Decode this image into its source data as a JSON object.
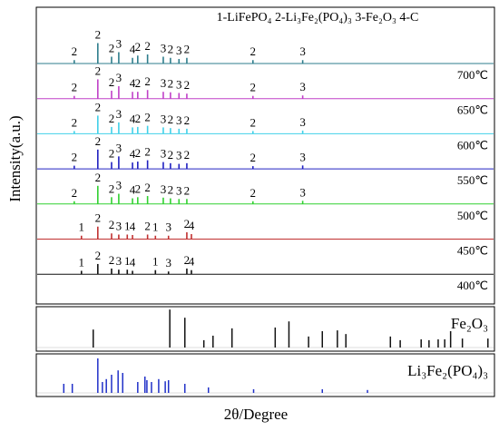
{
  "chart_data": [
    {
      "type": "xrd",
      "title": "1-LiFePO₄  2-Li₃Fe₂(PO₄)₃  3-Fe₂O₃  4-C",
      "y_label": "Intensity(a.u.)",
      "xlim": [
        10,
        80
      ],
      "ylim": [
        0,
        100
      ],
      "series": [
        {
          "name": "700℃",
          "color": "#2e7d8c",
          "x": [
            15.8,
            19.4,
            21.5,
            22.6,
            24.7,
            25.5,
            27.0,
            29.4,
            30.5,
            31.8,
            33.0,
            43.1,
            50.7
          ],
          "values": [
            15,
            90,
            30,
            50,
            25,
            35,
            40,
            30,
            25,
            20,
            25,
            15,
            15
          ],
          "peak_labels": [
            2,
            2,
            2,
            3,
            4,
            2,
            2,
            3,
            2,
            3,
            2,
            2,
            3
          ]
        },
        {
          "name": "650℃",
          "color": "#c040c8",
          "x": [
            15.8,
            19.4,
            21.5,
            22.6,
            24.7,
            25.5,
            27.0,
            29.4,
            30.5,
            31.8,
            33.0,
            43.1,
            50.7
          ],
          "values": [
            12,
            85,
            35,
            55,
            30,
            30,
            38,
            30,
            28,
            25,
            22,
            12,
            14
          ],
          "peak_labels": [
            2,
            2,
            2,
            3,
            4,
            2,
            2,
            3,
            2,
            3,
            2,
            2,
            3
          ]
        },
        {
          "name": "600℃",
          "color": "#40d0e8",
          "x": [
            15.8,
            19.4,
            21.5,
            22.6,
            24.7,
            25.5,
            27.0,
            29.4,
            30.5,
            31.8,
            33.0,
            43.1,
            50.7
          ],
          "values": [
            12,
            80,
            30,
            50,
            28,
            30,
            35,
            28,
            25,
            22,
            22,
            12,
            14
          ],
          "peak_labels": [
            2,
            2,
            2,
            3,
            4,
            2,
            2,
            3,
            2,
            3,
            2,
            2,
            3
          ]
        },
        {
          "name": "550℃",
          "color": "#2020c0",
          "x": [
            15.8,
            19.4,
            21.5,
            22.6,
            24.7,
            25.5,
            27.0,
            29.4,
            30.5,
            31.8,
            33.0,
            43.1,
            50.7
          ],
          "values": [
            14,
            85,
            30,
            55,
            28,
            32,
            38,
            30,
            25,
            22,
            25,
            12,
            15
          ],
          "peak_labels": [
            2,
            2,
            2,
            3,
            4,
            2,
            2,
            3,
            2,
            3,
            2,
            2,
            3
          ]
        },
        {
          "name": "500℃",
          "color": "#30d030",
          "x": [
            15.8,
            19.4,
            21.5,
            22.6,
            24.7,
            25.5,
            27.0,
            29.4,
            30.5,
            31.8,
            33.0,
            43.1,
            50.7
          ],
          "values": [
            12,
            80,
            30,
            45,
            25,
            30,
            35,
            28,
            25,
            22,
            22,
            12,
            14
          ],
          "peak_labels": [
            2,
            2,
            2,
            3,
            4,
            2,
            2,
            3,
            2,
            3,
            2,
            2,
            3
          ]
        },
        {
          "name": "450℃",
          "color": "#c03030",
          "x": [
            16.9,
            19.4,
            21.5,
            22.6,
            23.9,
            24.7,
            27.0,
            28.2,
            30.2,
            33.0,
            33.7
          ],
          "values": [
            15,
            55,
            25,
            20,
            20,
            18,
            20,
            15,
            15,
            30,
            22
          ],
          "peak_labels": [
            1,
            2,
            2,
            3,
            1,
            4,
            2,
            1,
            3,
            2,
            4
          ]
        },
        {
          "name": "400℃",
          "color": "#111111",
          "x": [
            16.9,
            19.4,
            21.5,
            22.6,
            23.9,
            24.7,
            28.2,
            30.2,
            33.0,
            33.7
          ],
          "values": [
            15,
            45,
            25,
            20,
            20,
            15,
            18,
            12,
            25,
            18
          ],
          "peak_labels": [
            1,
            2,
            2,
            3,
            1,
            4,
            1,
            3,
            2,
            4
          ]
        }
      ]
    },
    {
      "type": "stick",
      "label": "Fe₂O₃",
      "color": "#111111",
      "xlim": [
        10,
        80
      ],
      "ylim": [
        0,
        100
      ],
      "x": [
        18.7,
        30.4,
        32.7,
        35.6,
        37.0,
        39.9,
        46.5,
        48.6,
        51.6,
        53.7,
        56.0,
        57.3,
        64.1,
        65.6,
        68.8,
        70.0,
        71.4,
        72.4,
        73.3,
        75.1,
        79.0
      ],
      "values": [
        44,
        93,
        73,
        18,
        29,
        47,
        49,
        64,
        27,
        40,
        42,
        33,
        27,
        18,
        20,
        18,
        20,
        20,
        40,
        22,
        22
      ]
    },
    {
      "type": "stick",
      "label": "Li₃Fe₂(PO₄)₃",
      "color": "#2030c8",
      "x_label": "2θ/Degree",
      "xlim": [
        10,
        80
      ],
      "ylim": [
        0,
        100
      ],
      "x": [
        14.2,
        15.5,
        19.4,
        20.1,
        20.7,
        21.5,
        22.5,
        23.2,
        25.5,
        26.6,
        26.9,
        27.6,
        28.7,
        29.7,
        30.2,
        32.7,
        36.3,
        43.2,
        53.7,
        60.6
      ],
      "values": [
        25,
        25,
        95,
        30,
        38,
        50,
        62,
        55,
        30,
        45,
        35,
        30,
        38,
        32,
        35,
        25,
        15,
        10,
        10,
        8
      ]
    }
  ]
}
